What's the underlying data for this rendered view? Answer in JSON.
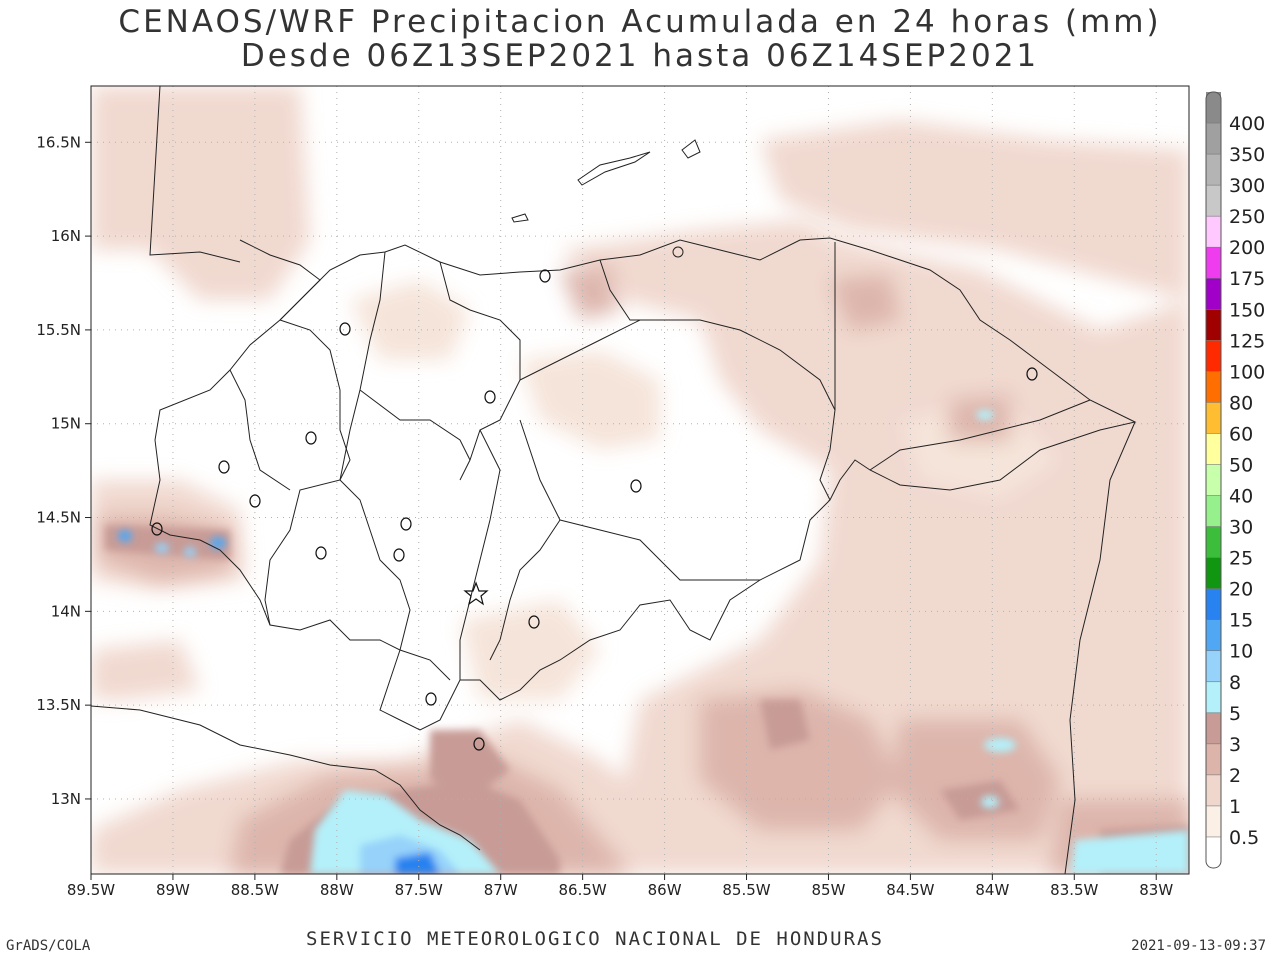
{
  "title": {
    "line1": "CENAOS/WRF Precipitacion Acumulada en 24 horas (mm)",
    "line2": "Desde 06Z13SEP2021 hasta 06Z14SEP2021"
  },
  "footer": {
    "credit": "GrADS/COLA",
    "agency": "SERVICIO METEOROLOGICO NACIONAL DE HONDURAS",
    "timestamp": "2021-09-13-09:37"
  },
  "map": {
    "lon_range": [
      -89.5,
      -82.8
    ],
    "lat_range": [
      12.6,
      16.8
    ],
    "lon_ticks": [
      -89.5,
      -89,
      -88.5,
      -88,
      -87.5,
      -87,
      -86.5,
      -86,
      -85.5,
      -85,
      -84.5,
      -84,
      -83.5,
      -83
    ],
    "lon_labels": [
      "89.5W",
      "89W",
      "88.5W",
      "88W",
      "87.5W",
      "87W",
      "86.5W",
      "86W",
      "85.5W",
      "85W",
      "84.5W",
      "84W",
      "83.5W",
      "83W"
    ],
    "lat_ticks": [
      16.5,
      16,
      15.5,
      15,
      14.5,
      14,
      13.5,
      13
    ],
    "lat_labels": [
      "16.5N",
      "16N",
      "15.5N",
      "15N",
      "14.5N",
      "14N",
      "13.5N",
      "13N"
    ],
    "grid": "dotted",
    "capital_marker": "star-icon",
    "city_marker": "circle-icon"
  },
  "colorbar": {
    "labels": [
      "400",
      "350",
      "300",
      "250",
      "200",
      "175",
      "150",
      "125",
      "100",
      "80",
      "60",
      "50",
      "40",
      "30",
      "25",
      "20",
      "15",
      "10",
      "8",
      "5",
      "3",
      "2",
      "1",
      "0.5"
    ],
    "colors": [
      "#8a8a8a",
      "#a0a0a0",
      "#b4b4b4",
      "#c8c8c8",
      "#ffc8ff",
      "#ef3cef",
      "#a000c8",
      "#a00000",
      "#ff2a00",
      "#ff6e00",
      "#ffbe32",
      "#ffff9e",
      "#c8ffaa",
      "#96f08c",
      "#3cbe3c",
      "#109610",
      "#2882f0",
      "#50a8f5",
      "#96d2fa",
      "#b4f0fa",
      "#c89b96",
      "#dcb4aa",
      "#f0d7cd",
      "#faf0e6",
      "#ffffff"
    ]
  }
}
